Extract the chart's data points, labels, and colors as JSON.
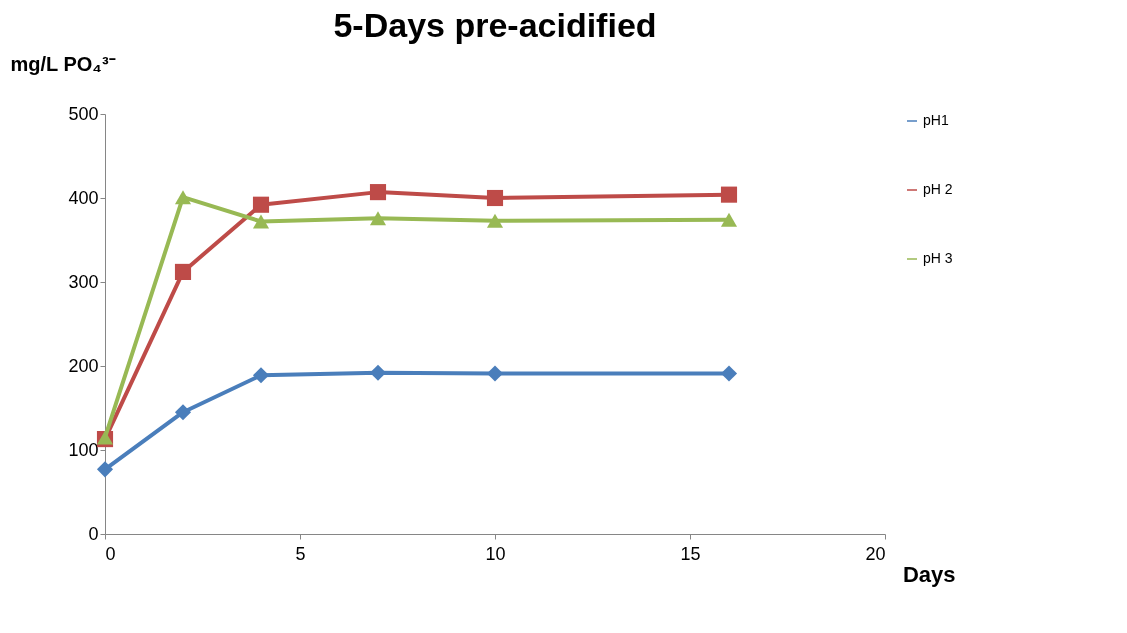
{
  "chart_data": {
    "type": "line",
    "title": "5-Days pre-acidified",
    "xlabel": "Days",
    "ylabel": "mg/L  PO₄³⁻",
    "x": [
      0,
      2,
      4,
      7,
      10,
      16
    ],
    "series": [
      {
        "name": "pH1",
        "color": "#4a7ebb",
        "marker": "diamond",
        "values": [
          77,
          145,
          189,
          192,
          191,
          191
        ]
      },
      {
        "name": "pH 2",
        "color": "#be4b48",
        "marker": "square",
        "values": [
          113,
          312,
          392,
          407,
          400,
          404
        ]
      },
      {
        "name": "pH 3",
        "color": "#98b954",
        "marker": "triangle",
        "values": [
          115,
          401,
          372,
          376,
          373,
          374
        ]
      }
    ],
    "xlim": [
      0,
      20
    ],
    "xticks": [
      0,
      5,
      10,
      15,
      20
    ],
    "ylim": [
      0,
      500
    ],
    "yticks": [
      0,
      100,
      200,
      300,
      400,
      500
    ],
    "grid": false,
    "legend": "right",
    "line_style": "solid"
  }
}
